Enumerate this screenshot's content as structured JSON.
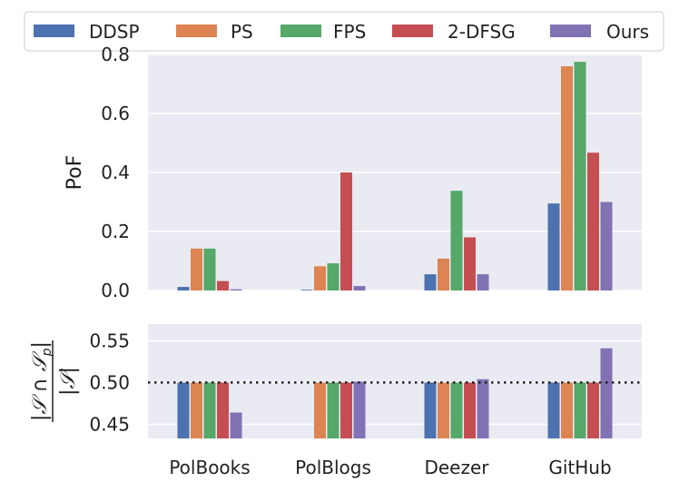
{
  "chart_data": [
    {
      "type": "bar",
      "panel": "top",
      "ylabel": "PoF",
      "ylim": [
        0.0,
        0.8
      ],
      "yticks": [
        0.0,
        0.2,
        0.4,
        0.6,
        0.8
      ],
      "ytick_labels": [
        "0.0",
        "0.2",
        "0.4",
        "0.6",
        "0.8"
      ],
      "categories": [
        "PolBooks",
        "PolBlogs",
        "Deezer",
        "GitHub"
      ],
      "series": [
        {
          "name": "DDSP",
          "values": [
            0.012,
            0.0,
            0.055,
            0.295
          ]
        },
        {
          "name": "PS",
          "values": [
            0.142,
            0.082,
            0.108,
            0.76
          ]
        },
        {
          "name": "FPS",
          "values": [
            0.142,
            0.092,
            0.338,
            0.775
          ]
        },
        {
          "name": "2-DFSG",
          "values": [
            0.032,
            0.4,
            0.18,
            0.467
          ]
        },
        {
          "name": "Ours",
          "values": [
            0.004,
            0.015,
            0.055,
            0.3
          ]
        }
      ],
      "legend": "top"
    },
    {
      "type": "bar",
      "panel": "bottom",
      "ylabel_numerator": "|𝒮 ∩ 𝒮",
      "ylabel_subscript": "p",
      "ylabel_numerator_close": "|",
      "ylabel_denominator": "|𝒮|",
      "ylim": [
        0.433,
        0.57
      ],
      "yticks": [
        0.45,
        0.5,
        0.55
      ],
      "ytick_labels": [
        "0.45",
        "0.50",
        "0.55"
      ],
      "reference_line": 0.5,
      "categories": [
        "PolBooks",
        "PolBlogs",
        "Deezer",
        "GitHub"
      ],
      "series": [
        {
          "name": "DDSP",
          "values": [
            0.5,
            null,
            0.5,
            0.5
          ]
        },
        {
          "name": "PS",
          "values": [
            0.5,
            0.5,
            0.5,
            0.5
          ]
        },
        {
          "name": "FPS",
          "values": [
            0.5,
            0.5,
            0.5,
            0.5
          ]
        },
        {
          "name": "2-DFSG",
          "values": [
            0.5,
            0.5,
            0.5,
            0.5
          ]
        },
        {
          "name": "Ours",
          "values": [
            0.464,
            0.501,
            0.504,
            0.541
          ]
        }
      ]
    }
  ],
  "colors": {
    "DDSP": "#4c72b0",
    "PS": "#dd8452",
    "FPS": "#55a868",
    "2-DFSG": "#c44e52",
    "Ours": "#8172b3",
    "panel_bg": "#eaeaf2",
    "reference_line": "#222222"
  }
}
